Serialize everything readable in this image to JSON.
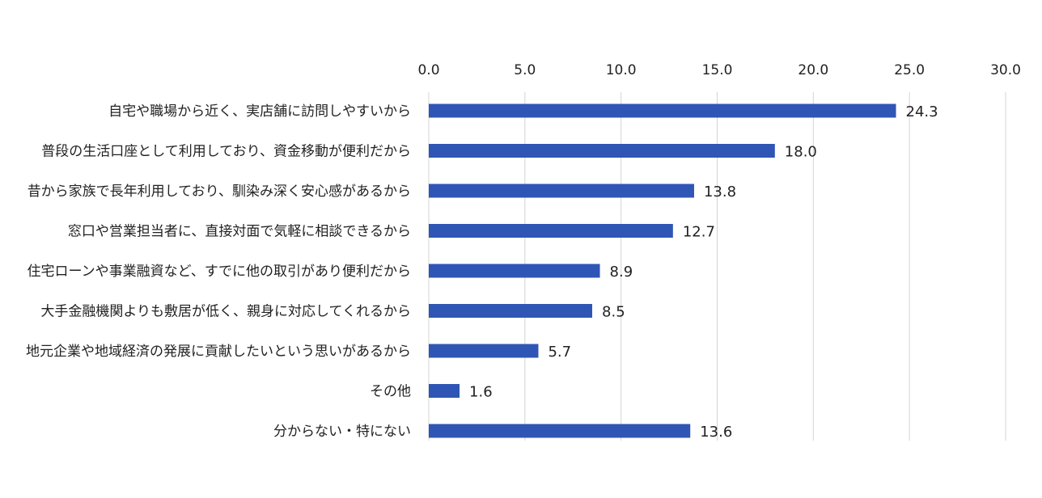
{
  "chart_data": {
    "type": "bar",
    "orientation": "horizontal",
    "categories": [
      "自宅や職場から近く、実店舗に訪問しやすいから",
      "普段の生活口座として利用しており、資金移動が便利だから",
      "昔から家族で長年利用しており、馴染み深く安心感があるから",
      "窓口や営業担当者に、直接対面で気軽に相談できるから",
      "住宅ローンや事業融資など、すでに他の取引があり便利だから",
      "大手金融機関よりも敷居が低く、親身に対応してくれるから",
      "地元企業や地域経済の発展に貢献したいという思いがあるから",
      "その他",
      "分からない・特にない"
    ],
    "values": [
      24.3,
      18.0,
      13.8,
      12.7,
      8.9,
      8.5,
      5.7,
      1.6,
      13.6
    ],
    "value_labels": [
      "24.3",
      "18.0",
      "13.8",
      "12.7",
      "8.9",
      "8.5",
      "5.7",
      "1.6",
      "13.6"
    ],
    "xlim": [
      0,
      30
    ],
    "xticks": [
      "0.0",
      "5.0",
      "10.0",
      "15.0",
      "20.0",
      "25.0",
      "30.0"
    ],
    "xaxis_position": "top",
    "grid": true,
    "bar_color": "#2f55b5",
    "grid_color": "#d4d4d4"
  }
}
